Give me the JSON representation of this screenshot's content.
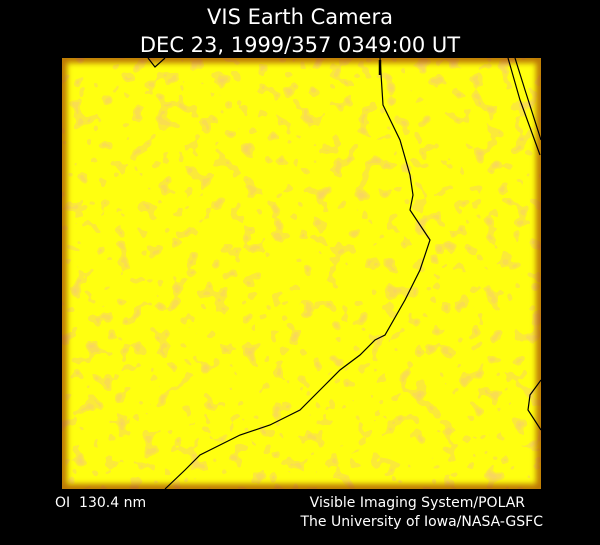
{
  "header": {
    "title": "VIS Earth Camera",
    "timestamp": "DEC 23, 1999/357 0349:00 UT"
  },
  "footer": {
    "wavelength": "OI  130.4 nm",
    "instrument": "Visible Imaging System/POLAR",
    "institution": "The University of Iowa/NASA-GSFC"
  }
}
